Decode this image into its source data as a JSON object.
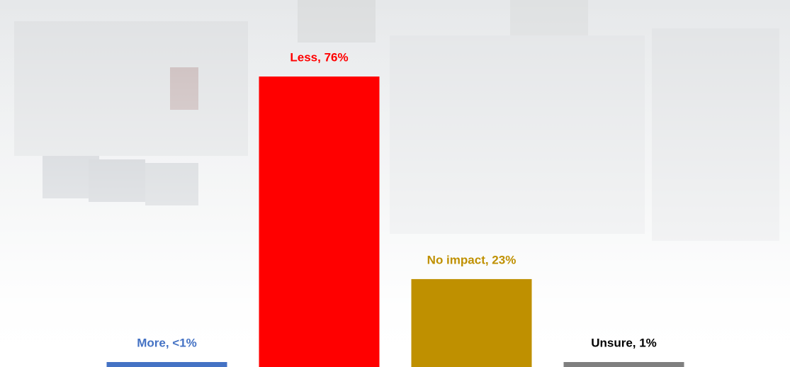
{
  "chart_data": {
    "type": "bar",
    "values": [
      0.5,
      76,
      23,
      1
    ],
    "value_labels": [
      "More, <1%",
      "Less, 76%",
      "No impact, 23%",
      "Unsure, 1%"
    ],
    "colors": [
      "#4472c4",
      "#ff0000",
      "#bf9000",
      "#7f7f7f"
    ],
    "label_colors": [
      "#4472c4",
      "#ff0000",
      "#bf9000",
      "#000000"
    ],
    "ylim": [
      0,
      76
    ]
  }
}
